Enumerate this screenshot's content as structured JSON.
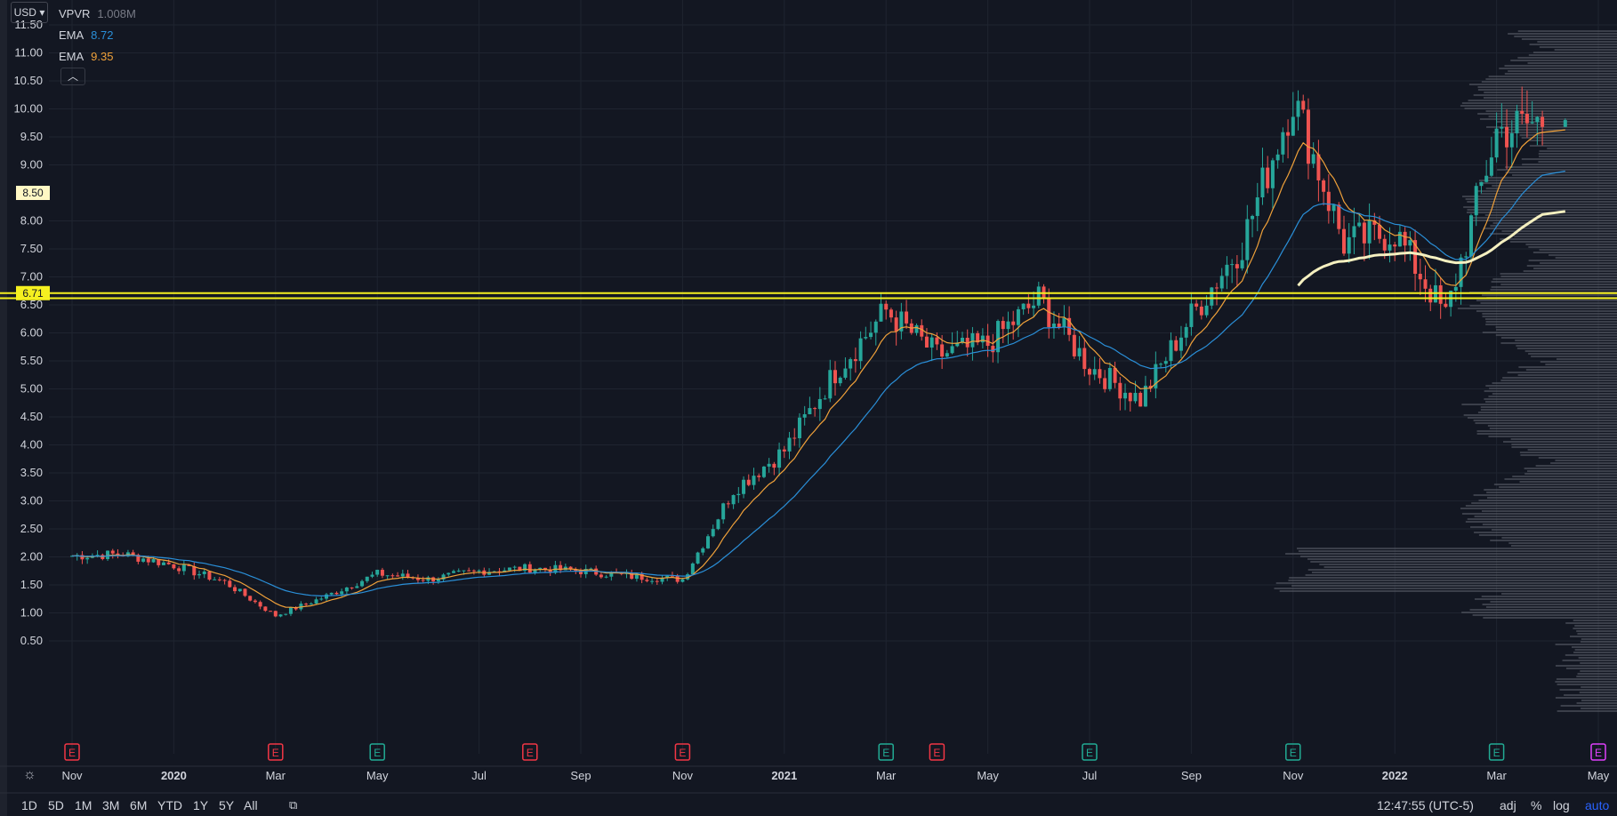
{
  "header": {
    "currency": "USD",
    "legend": [
      {
        "name": "VPVR",
        "value": "1.008M",
        "color": "#787b86"
      },
      {
        "name": "EMA",
        "value": "8.72",
        "color": "#2a8fd8"
      },
      {
        "name": "EMA",
        "value": "9.35",
        "color": "#f0a13a"
      }
    ],
    "collapse_icon": "chevron-up-icon"
  },
  "price_labels": {
    "marker_white": "8.50",
    "marker_yellow": "6.71"
  },
  "chart_data": {
    "type": "candlestick",
    "y_ticks": [
      "11.50",
      "11.00",
      "10.50",
      "10.00",
      "9.50",
      "9.00",
      "8.00",
      "7.50",
      "7.00",
      "6.50",
      "6.00",
      "5.50",
      "5.00",
      "4.50",
      "4.00",
      "3.50",
      "3.00",
      "2.50",
      "2.00",
      "1.50",
      "1.00",
      "0.50"
    ],
    "y_tick_values": [
      11.5,
      11.0,
      10.5,
      10.0,
      9.5,
      9.0,
      8.0,
      7.5,
      7.0,
      6.5,
      6.0,
      5.5,
      5.0,
      4.5,
      4.0,
      3.5,
      3.0,
      2.5,
      2.0,
      1.5,
      1.0,
      0.5
    ],
    "ylim": [
      0.5,
      11.5
    ],
    "x_ticks": [
      "Nov",
      "2020",
      "Mar",
      "May",
      "Jul",
      "Sep",
      "Nov",
      "2021",
      "Mar",
      "May",
      "Jul",
      "Sep",
      "Nov",
      "2022",
      "Mar",
      "May"
    ],
    "x_tick_months": [
      "2019-11",
      "2020-01",
      "2020-03",
      "2020-05",
      "2020-07",
      "2020-09",
      "2020-11",
      "2021-01",
      "2021-03",
      "2021-05",
      "2021-07",
      "2021-09",
      "2021-11",
      "2022-01",
      "2022-03",
      "2022-05"
    ],
    "horizontal_lines": [
      {
        "price": 6.71,
        "color": "#f5f020"
      },
      {
        "price": 6.62,
        "color": "#f5f020"
      }
    ],
    "monthly_close": [
      {
        "month": "2019-11",
        "close": 2.02
      },
      {
        "month": "2019-12",
        "close": 2.05
      },
      {
        "month": "2020-01",
        "close": 1.85
      },
      {
        "month": "2020-02",
        "close": 1.55
      },
      {
        "month": "2020-03",
        "close": 0.95
      },
      {
        "month": "2020-04",
        "close": 1.3
      },
      {
        "month": "2020-05",
        "close": 1.7
      },
      {
        "month": "2020-06",
        "close": 1.6
      },
      {
        "month": "2020-07",
        "close": 1.75
      },
      {
        "month": "2020-08",
        "close": 1.8
      },
      {
        "month": "2020-09",
        "close": 1.75
      },
      {
        "month": "2020-10",
        "close": 1.65
      },
      {
        "month": "2020-11",
        "close": 1.6
      },
      {
        "month": "2020-12",
        "close": 3.2
      },
      {
        "month": "2021-01",
        "close": 3.9
      },
      {
        "month": "2021-02",
        "close": 5.3
      },
      {
        "month": "2021-03",
        "close": 6.4
      },
      {
        "month": "2021-04",
        "close": 5.6
      },
      {
        "month": "2021-05",
        "close": 5.8
      },
      {
        "month": "2021-06",
        "close": 6.6
      },
      {
        "month": "2021-07",
        "close": 5.4
      },
      {
        "month": "2021-08",
        "close": 4.8
      },
      {
        "month": "2021-09",
        "close": 6.3
      },
      {
        "month": "2021-10",
        "close": 7.6
      },
      {
        "month": "2021-11",
        "close": 10.2
      },
      {
        "month": "2021-12",
        "close": 7.6
      },
      {
        "month": "2022-01",
        "close": 7.8
      },
      {
        "month": "2022-02",
        "close": 6.3
      },
      {
        "month": "2022-03",
        "close": 9.6
      },
      {
        "month": "2022-04",
        "close": 9.8
      }
    ],
    "earnings_markers": [
      {
        "month": "2019-11",
        "type": "E",
        "color": "#f23645"
      },
      {
        "month": "2020-03",
        "type": "E",
        "color": "#f23645"
      },
      {
        "month": "2020-05",
        "type": "E",
        "color": "#22ab94"
      },
      {
        "month": "2020-08",
        "type": "E",
        "color": "#f23645"
      },
      {
        "month": "2020-11",
        "type": "E",
        "color": "#f23645"
      },
      {
        "month": "2021-03",
        "type": "E",
        "color": "#22ab94"
      },
      {
        "month": "2021-04",
        "type": "E",
        "color": "#f23645"
      },
      {
        "month": "2021-07",
        "type": "E",
        "color": "#22ab94"
      },
      {
        "month": "2021-11",
        "type": "E",
        "color": "#22ab94"
      },
      {
        "month": "2022-03",
        "type": "E",
        "color": "#22ab94"
      },
      {
        "month": "2022-05",
        "type": "E",
        "color": "#e040fb"
      }
    ]
  },
  "bottom": {
    "timeframes": [
      "1D",
      "5D",
      "1M",
      "3M",
      "6M",
      "YTD",
      "1Y",
      "5Y",
      "All"
    ],
    "compare_icon": "calendar-range-icon",
    "clock": "12:47:55 (UTC-5)",
    "options": [
      "adj",
      "%",
      "log",
      "auto"
    ],
    "active_option_color": "#2962ff",
    "settings_icon": "gear-icon"
  }
}
